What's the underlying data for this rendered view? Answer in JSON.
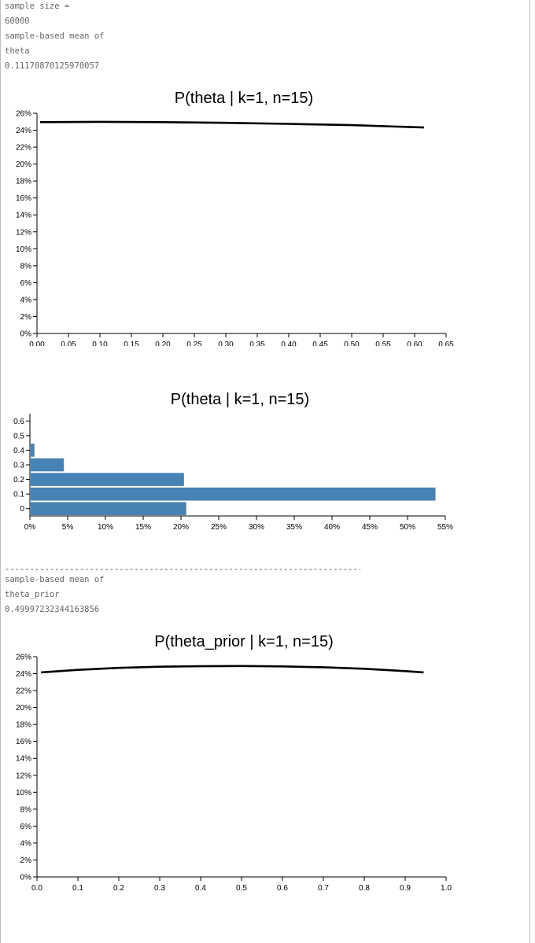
{
  "text_block_1": {
    "lines": [
      "sample size =",
      "60000",
      "sample-based mean of",
      "theta",
      "0.11170870125970057"
    ]
  },
  "separator": "-----------------------------------------------------------------------------------",
  "text_block_2": {
    "lines": [
      "sample-based mean of",
      "theta_prior",
      "0.49997232344163856"
    ]
  },
  "colors": {
    "bar": "#4682b4",
    "line": "#000000",
    "axis": "#000000"
  },
  "chart_data": [
    {
      "type": "line",
      "title": "P(theta | k=1, n=15)",
      "xlim": [
        0,
        0.65
      ],
      "ylim": [
        0,
        0.26
      ],
      "x_ticks": [
        "0.00",
        "0.05",
        "0.10",
        "0.15",
        "0.20",
        "0.25",
        "0.30",
        "0.35",
        "0.40",
        "0.45",
        "0.50",
        "0.55",
        "0.60",
        "0.65"
      ],
      "y_ticks": [
        "0%",
        "2%",
        "4%",
        "6%",
        "8%",
        "10%",
        "12%",
        "14%",
        "16%",
        "18%",
        "20%",
        "22%",
        "24%",
        "26%"
      ],
      "series": [
        {
          "x": [
            0.005,
            0.1,
            0.2,
            0.3,
            0.4,
            0.5,
            0.615
          ],
          "y": [
            0.2495,
            0.2499,
            0.2495,
            0.2487,
            0.2475,
            0.246,
            0.2432
          ]
        }
      ]
    },
    {
      "type": "bar",
      "orientation": "horizontal",
      "title": "P(theta | k=1, n=15)",
      "xlim": [
        0,
        0.55
      ],
      "x_ticks": [
        "0%",
        "5%",
        "10%",
        "15%",
        "20%",
        "25%",
        "30%",
        "35%",
        "40%",
        "45%",
        "50%",
        "55%"
      ],
      "y_ticks": [
        "0",
        "0.1",
        "0.2",
        "0.3",
        "0.4",
        "0.5",
        "0.6"
      ],
      "categories": [
        "0",
        "0.1",
        "0.2",
        "0.3",
        "0.4"
      ],
      "values": [
        0.207,
        0.537,
        0.204,
        0.045,
        0.006
      ]
    },
    {
      "type": "line",
      "title": "P(theta_prior | k=1, n=15)",
      "xlim": [
        0,
        1.0
      ],
      "ylim": [
        0,
        0.26
      ],
      "x_ticks": [
        "0.0",
        "0.1",
        "0.2",
        "0.3",
        "0.4",
        "0.5",
        "0.6",
        "0.7",
        "0.8",
        "0.9",
        "1.0"
      ],
      "y_ticks": [
        "0%",
        "2%",
        "4%",
        "6%",
        "8%",
        "10%",
        "12%",
        "14%",
        "16%",
        "18%",
        "20%",
        "22%",
        "24%",
        "26%"
      ],
      "series": [
        {
          "x": [
            0.01,
            0.1,
            0.2,
            0.3,
            0.4,
            0.5,
            0.6,
            0.7,
            0.8,
            0.9,
            0.945
          ],
          "y": [
            0.2415,
            0.2445,
            0.2468,
            0.2482,
            0.2488,
            0.249,
            0.2486,
            0.2476,
            0.2458,
            0.243,
            0.2415
          ]
        }
      ]
    }
  ]
}
